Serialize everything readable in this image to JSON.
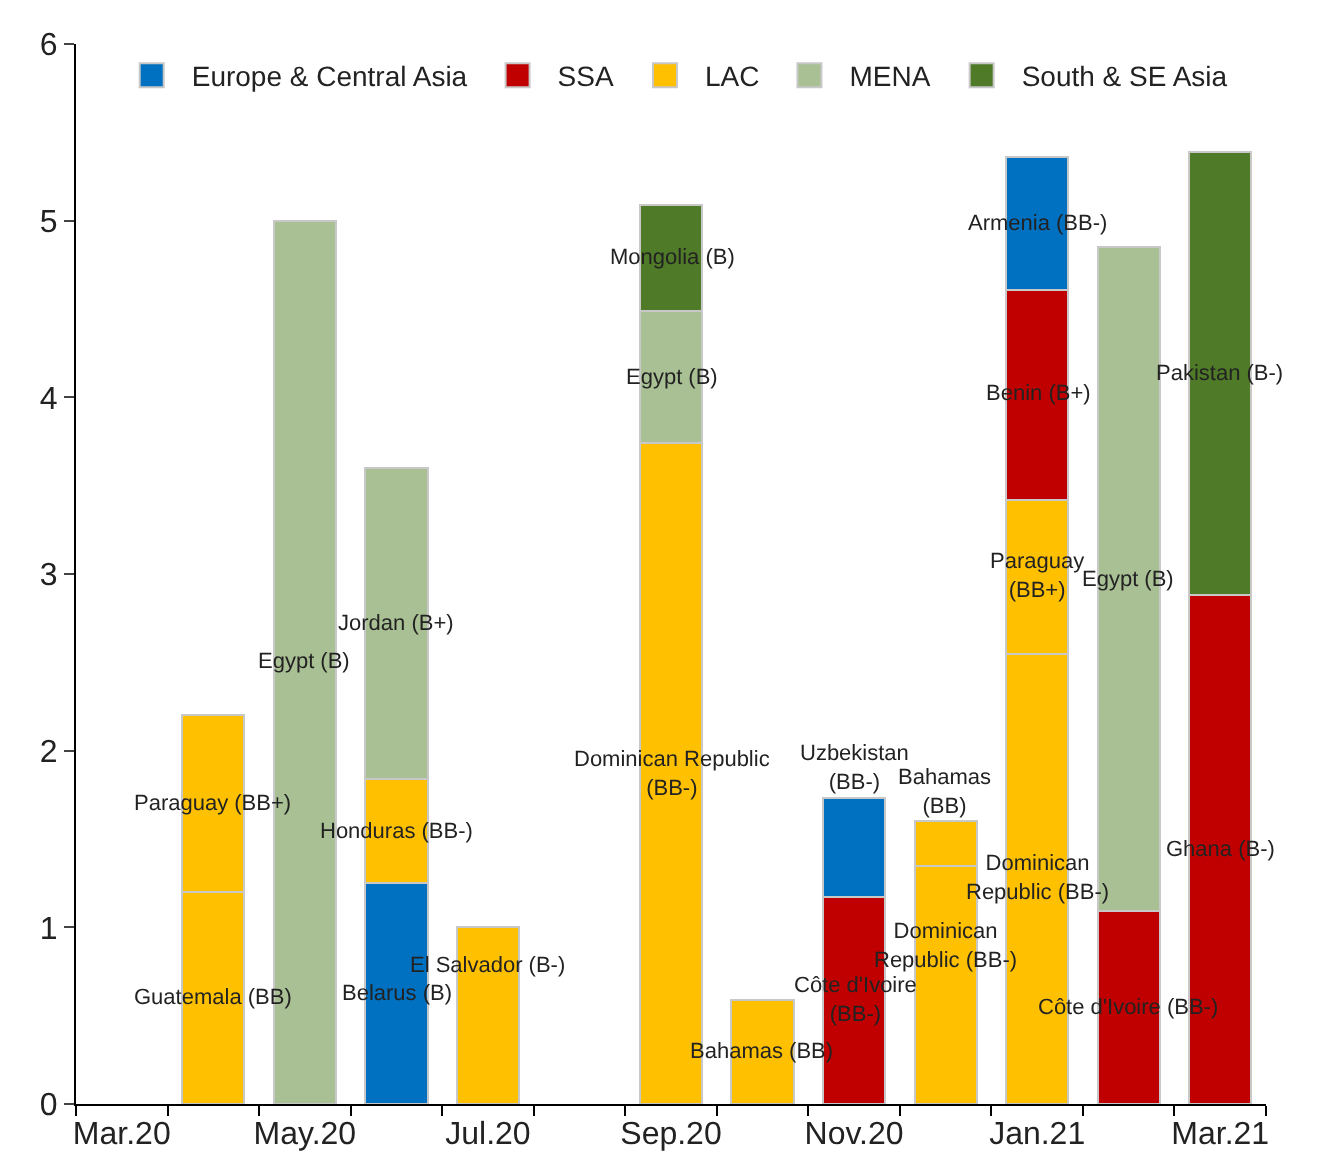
{
  "chart_data": {
    "type": "bar",
    "stacked": true,
    "categories": [
      "Mar.20",
      null,
      "May.20",
      null,
      "Jul.20",
      null,
      "Sep.20",
      null,
      "Nov.20",
      null,
      "Jan.21",
      null,
      "Mar.21"
    ],
    "series": [
      {
        "name": "Europe & Central Asia",
        "color": "#0070c0",
        "values": [
          null,
          null,
          null,
          1.25,
          null,
          null,
          null,
          null,
          null,
          null,
          null,
          null,
          null
        ],
        "value_labels": [
          null,
          null,
          null,
          "Belarus (B)",
          null,
          null,
          null,
          null,
          null,
          null,
          null,
          null,
          null
        ]
      },
      {
        "name": "SSA",
        "color": "#c00000",
        "values": [
          null,
          null,
          null,
          null,
          null,
          null,
          null,
          null,
          1.17,
          null,
          null,
          1.09,
          2.88
        ],
        "value_labels": [
          null,
          null,
          null,
          null,
          null,
          null,
          null,
          null,
          "Côte d'Ivoire\n(BB-)",
          null,
          null,
          "Côte d'Ivoire (BB-)",
          "Ghana (B-)"
        ]
      },
      {
        "name": "LAC",
        "color": "#ffc000",
        "values": [
          null,
          1.2,
          null,
          0.59,
          1.0,
          null,
          3.74,
          0.59,
          null,
          1.35,
          2.55,
          null,
          null
        ],
        "value_labels": [
          null,
          "Guatemala (BB)",
          null,
          "Honduras (BB-)",
          "El Salvador (B-)",
          null,
          "Dominican Republic\n(BB-)",
          "Bahamas (BB)",
          null,
          "Dominican\nRepublic (BB-)",
          "Dominican\nRepublic (BB-)",
          null,
          null
        ]
      },
      {
        "color": "#ffc000",
        "values": [
          null,
          1.0,
          null,
          null,
          null,
          null,
          null,
          null,
          null,
          0.25,
          0.87,
          null,
          null
        ],
        "value_labels": [
          null,
          "Paraguay (BB+)",
          null,
          null,
          null,
          null,
          null,
          null,
          null,
          "Bahamas\n(BB)",
          "Paraguay\n(BB+)",
          null,
          null
        ]
      },
      {
        "color": "#c00000",
        "values": [
          null,
          null,
          null,
          null,
          null,
          null,
          null,
          null,
          null,
          null,
          1.19,
          null,
          null
        ],
        "value_labels": [
          null,
          null,
          null,
          null,
          null,
          null,
          null,
          null,
          null,
          null,
          "Benin (B+)",
          null,
          null
        ]
      },
      {
        "name": "MENA",
        "color": "#a9c094",
        "values": [
          null,
          null,
          5.0,
          1.76,
          null,
          null,
          0.75,
          null,
          null,
          null,
          null,
          3.76,
          null
        ],
        "value_labels": [
          null,
          null,
          "Egypt (B)",
          "Jordan (B+)",
          null,
          null,
          "Egypt (B)",
          null,
          null,
          null,
          null,
          "Egypt (B)",
          null
        ]
      },
      {
        "color": "#0070c0",
        "values": [
          null,
          null,
          null,
          null,
          null,
          null,
          null,
          null,
          0.56,
          null,
          0.75,
          null,
          null
        ],
        "value_labels": [
          null,
          null,
          null,
          null,
          null,
          null,
          null,
          null,
          "Uzbekistan\n(BB-)",
          null,
          "Armenia (BB-)",
          null,
          null
        ]
      },
      {
        "name": "South & SE Asia",
        "color": "#4f7a28",
        "values": [
          null,
          null,
          null,
          null,
          null,
          null,
          0.6,
          null,
          null,
          null,
          null,
          null,
          2.51
        ],
        "value_labels": [
          null,
          null,
          null,
          null,
          null,
          null,
          "Mongolia (B)",
          null,
          null,
          null,
          null,
          null,
          "Pakistan (B-)"
        ]
      }
    ],
    "ylim": [
      0,
      6
    ],
    "yticks": [
      0,
      1,
      2,
      3,
      4,
      5,
      6
    ],
    "grid": false,
    "legend": "top"
  }
}
